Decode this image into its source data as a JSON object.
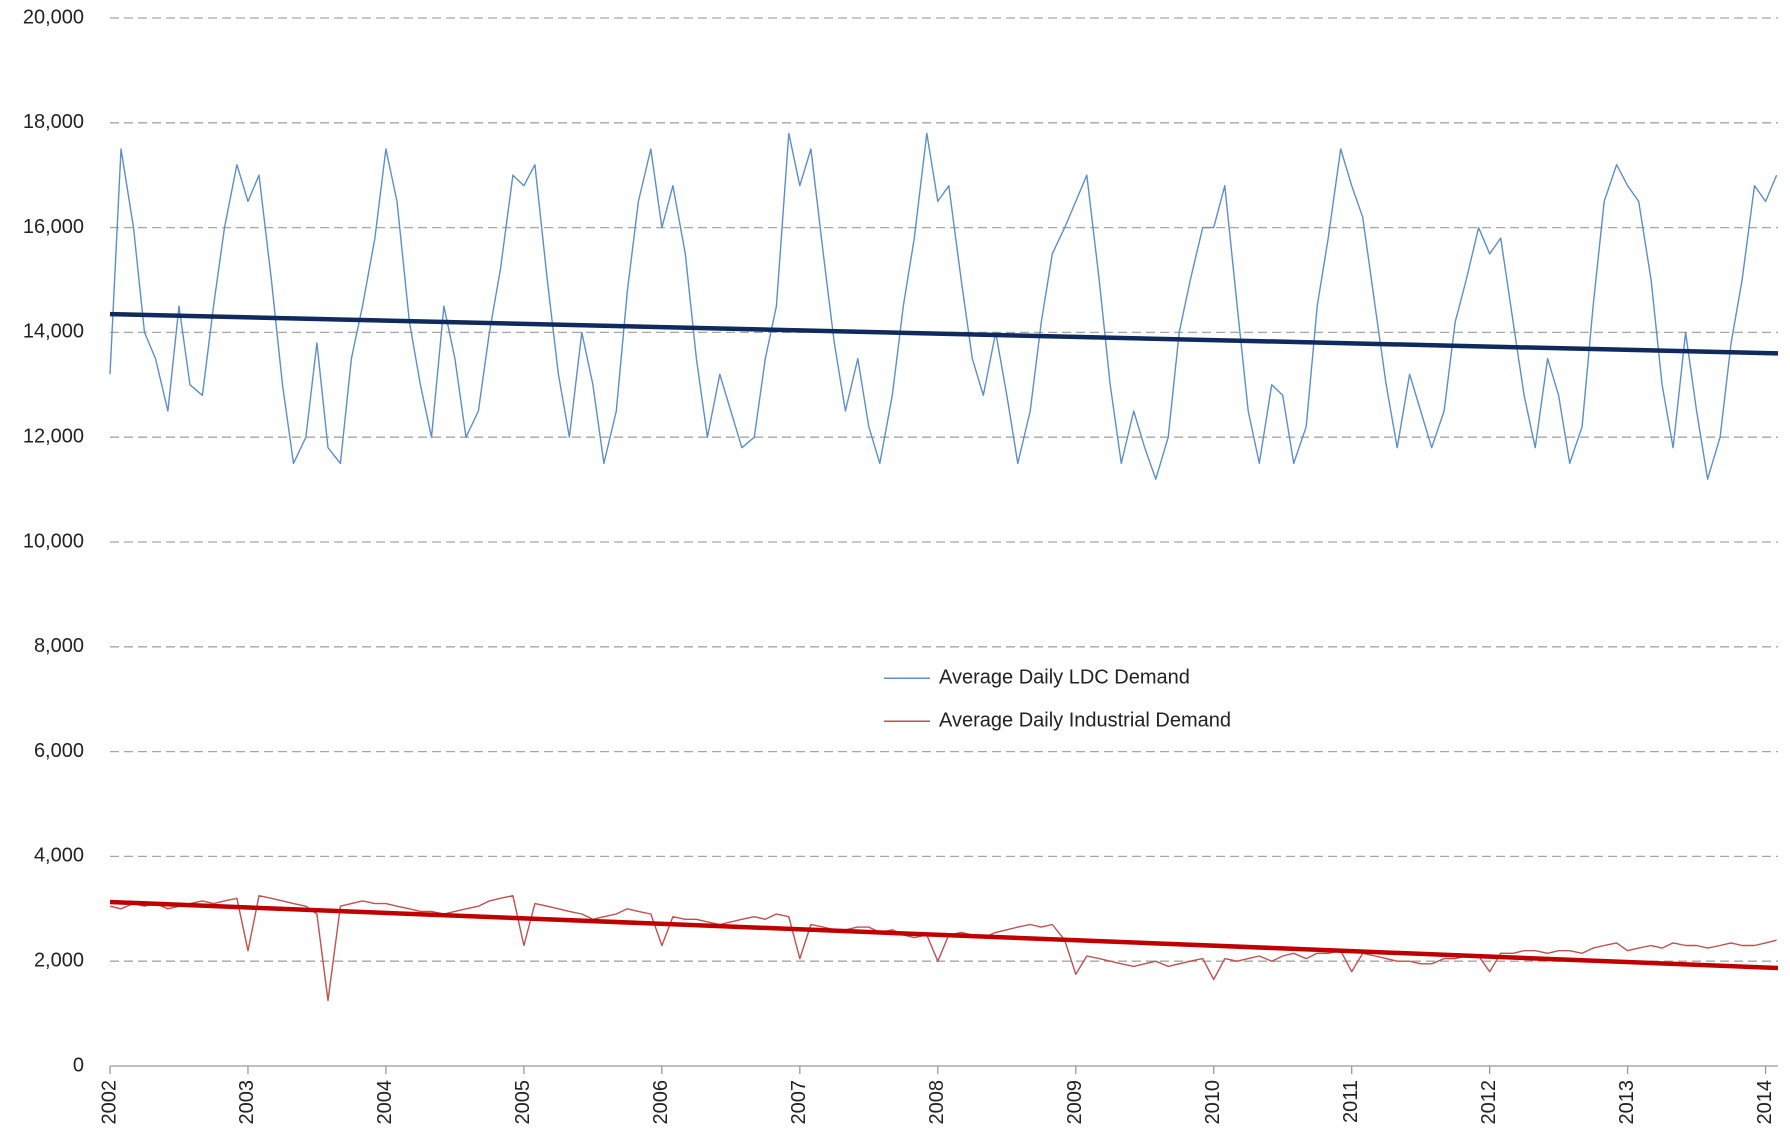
{
  "chart_data": {
    "type": "line",
    "x": [
      2002,
      2002.08,
      2002.17,
      2002.25,
      2002.33,
      2002.42,
      2002.5,
      2002.58,
      2002.67,
      2002.75,
      2002.83,
      2002.92,
      2003,
      2003.08,
      2003.17,
      2003.25,
      2003.33,
      2003.42,
      2003.5,
      2003.58,
      2003.67,
      2003.75,
      2003.83,
      2003.92,
      2004,
      2004.08,
      2004.17,
      2004.25,
      2004.33,
      2004.42,
      2004.5,
      2004.58,
      2004.67,
      2004.75,
      2004.83,
      2004.92,
      2005,
      2005.08,
      2005.17,
      2005.25,
      2005.33,
      2005.42,
      2005.5,
      2005.58,
      2005.67,
      2005.75,
      2005.83,
      2005.92,
      2006,
      2006.08,
      2006.17,
      2006.25,
      2006.33,
      2006.42,
      2006.5,
      2006.58,
      2006.67,
      2006.75,
      2006.83,
      2006.92,
      2007,
      2007.08,
      2007.17,
      2007.25,
      2007.33,
      2007.42,
      2007.5,
      2007.58,
      2007.67,
      2007.75,
      2007.83,
      2007.92,
      2008,
      2008.08,
      2008.17,
      2008.25,
      2008.33,
      2008.42,
      2008.5,
      2008.58,
      2008.67,
      2008.75,
      2008.83,
      2008.92,
      2009,
      2009.08,
      2009.17,
      2009.25,
      2009.33,
      2009.42,
      2009.5,
      2009.58,
      2009.67,
      2009.75,
      2009.83,
      2009.92,
      2010,
      2010.08,
      2010.17,
      2010.25,
      2010.33,
      2010.42,
      2010.5,
      2010.58,
      2010.67,
      2010.75,
      2010.83,
      2010.92,
      2011,
      2011.08,
      2011.17,
      2011.25,
      2011.33,
      2011.42,
      2011.5,
      2011.58,
      2011.67,
      2011.75,
      2011.83,
      2011.92,
      2012,
      2012.08,
      2012.17,
      2012.25,
      2012.33,
      2012.42,
      2012.5,
      2012.58,
      2012.67,
      2012.75,
      2012.83,
      2012.92,
      2013,
      2013.08,
      2013.17,
      2013.25,
      2013.33,
      2013.42,
      2013.5,
      2013.58,
      2013.67,
      2013.75,
      2013.83,
      2013.92,
      2014,
      2014.08
    ],
    "series": [
      {
        "name": "Average Daily LDC Demand",
        "color": "#5b8fc9",
        "values": [
          13200,
          17500,
          16000,
          14000,
          13500,
          12500,
          14500,
          13000,
          12800,
          14500,
          16000,
          17200,
          16500,
          17000,
          15000,
          13000,
          11500,
          12000,
          13800,
          11800,
          11500,
          13500,
          14500,
          15800,
          17500,
          16500,
          14200,
          13000,
          12000,
          14500,
          13500,
          12000,
          12500,
          14000,
          15200,
          17000,
          16800,
          17200,
          15000,
          13200,
          12000,
          14000,
          13000,
          11500,
          12500,
          14800,
          16500,
          17500,
          16000,
          16800,
          15500,
          13500,
          12000,
          13200,
          12500,
          11800,
          12000,
          13500,
          14500,
          17800,
          16800,
          17500,
          15500,
          13800,
          12500,
          13500,
          12200,
          11500,
          12800,
          14500,
          15800,
          17800,
          16500,
          16800,
          15000,
          13500,
          12800,
          14000,
          12800,
          11500,
          12500,
          14200,
          15500,
          16000,
          16500,
          17000,
          15000,
          13000,
          11500,
          12500,
          11800,
          11200,
          12000,
          14000,
          15000,
          16000,
          16000,
          16800,
          14500,
          12500,
          11500,
          13000,
          12800,
          11500,
          12200,
          14500,
          15800,
          17500,
          16800,
          16200,
          14500,
          13000,
          11800,
          13200,
          12500,
          11800,
          12500,
          14200,
          15000,
          16000,
          15500,
          15800,
          14200,
          12800,
          11800,
          13500,
          12800,
          11500,
          12200,
          14500,
          16500,
          17200,
          16800,
          16500,
          15000,
          13000,
          11800,
          14000,
          12500,
          11200,
          12000,
          13800,
          15000,
          16800,
          16500,
          17000
        ]
      },
      {
        "name": "Average Daily Industrial Demand",
        "color": "#c0504d",
        "values": [
          3050,
          3000,
          3100,
          3050,
          3100,
          3000,
          3050,
          3100,
          3150,
          3100,
          3150,
          3200,
          2200,
          3250,
          3200,
          3150,
          3100,
          3050,
          2900,
          1250,
          3050,
          3100,
          3150,
          3100,
          3100,
          3050,
          3000,
          2950,
          2950,
          2900,
          2950,
          3000,
          3050,
          3150,
          3200,
          3250,
          2300,
          3100,
          3050,
          3000,
          2950,
          2900,
          2800,
          2850,
          2900,
          3000,
          2950,
          2900,
          2300,
          2850,
          2800,
          2800,
          2750,
          2700,
          2750,
          2800,
          2850,
          2800,
          2900,
          2850,
          2050,
          2700,
          2650,
          2600,
          2600,
          2650,
          2650,
          2550,
          2600,
          2500,
          2450,
          2500,
          2000,
          2500,
          2550,
          2500,
          2450,
          2550,
          2600,
          2650,
          2700,
          2650,
          2700,
          2400,
          1750,
          2100,
          2050,
          2000,
          1950,
          1900,
          1950,
          2000,
          1900,
          1950,
          2000,
          2050,
          1650,
          2050,
          2000,
          2050,
          2100,
          2000,
          2100,
          2150,
          2050,
          2150,
          2150,
          2200,
          1800,
          2150,
          2100,
          2050,
          2000,
          2000,
          1950,
          1950,
          2050,
          2050,
          2100,
          2100,
          1800,
          2150,
          2150,
          2200,
          2200,
          2150,
          2200,
          2200,
          2150,
          2250,
          2300,
          2350,
          2200,
          2250,
          2300,
          2250,
          2350,
          2300,
          2300,
          2250,
          2300,
          2350,
          2300,
          2300,
          2350,
          2400
        ]
      }
    ],
    "trendlines": [
      {
        "color": "#0f2a5c",
        "x": [
          2002,
          2014.09
        ],
        "values": [
          14350,
          13600
        ]
      },
      {
        "color": "#c00000",
        "x": [
          2002,
          2014.09
        ],
        "values": [
          3130,
          1870
        ]
      }
    ],
    "xlim": [
      2002,
      2014.09
    ],
    "xticks": [
      2002,
      2003,
      2004,
      2005,
      2006,
      2007,
      2008,
      2009,
      2010,
      2011,
      2012,
      2013,
      2014
    ],
    "ylim": [
      0,
      20000
    ],
    "yticks": [
      0,
      {
        "value": 2000,
        "label": "2,000"
      },
      {
        "value": 4000,
        "label": "4,000"
      },
      {
        "value": 6000,
        "label": "6,000"
      },
      {
        "value": 8000,
        "label": "8,000"
      },
      {
        "value": 10000,
        "label": "10,000"
      },
      {
        "value": 12000,
        "label": "12,000"
      },
      {
        "value": 14000,
        "label": "14,000"
      },
      {
        "value": 16000,
        "label": "16,000"
      },
      {
        "value": 18000,
        "label": "18,000"
      },
      {
        "value": 20000,
        "label": "20,000"
      }
    ],
    "grid": true,
    "legend": "center"
  }
}
